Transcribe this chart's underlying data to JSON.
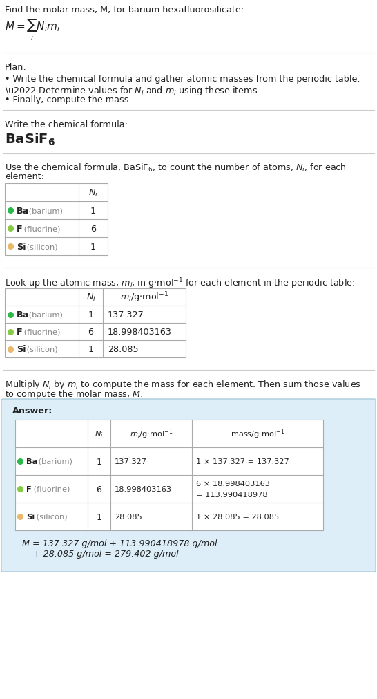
{
  "bg_color": "#ffffff",
  "title_text": "Find the molar mass, M, for barium hexafluorosilicate:",
  "sep_color": "#cccccc",
  "sep_lw": 0.8,
  "plan_header": "Plan:",
  "plan_bullets": [
    "• Write the chemical formula and gather atomic masses from the periodic table.",
    "• Determine values for Nᵢ and mᵢ using these items.",
    "• Finally, compute the mass."
  ],
  "step1_label": "Write the chemical formula:",
  "step2_label_pre": "Use the chemical formula, BaSiF",
  "step2_label_post": ", to count the number of atoms, Nᵢ, for each\nelement:",
  "step3_label": "Look up the atomic mass, mᵢ, in g·mol⁻¹ for each element in the periodic table:",
  "step4_label": "Multiply Nᵢ by mᵢ to compute the mass for each element. Then sum those values\nto compute the molar mass, M:",
  "element_names": [
    "Ba",
    "F",
    "Si"
  ],
  "element_fullnames": [
    "barium",
    "fluorine",
    "silicon"
  ],
  "element_colors": [
    "#2db84b",
    "#85cc44",
    "#e8b86d"
  ],
  "ni_vals": [
    "1",
    "6",
    "1"
  ],
  "mi_vals": [
    "137.327",
    "18.998403163",
    "28.085"
  ],
  "mass_calcs": [
    "1 × 137.327 = 137.327",
    "6 × 18.998403163\n= 113.990418978",
    "1 × 28.085 = 28.085"
  ],
  "answer_bg": "#ddeef8",
  "answer_border": "#aaccdd",
  "answer_label": "Answer:",
  "final_eq_line1": "M = 137.327 g/mol + 113.990418978 g/mol",
  "final_eq_line2": "    + 28.085 g/mol = 279.402 g/mol",
  "table_border_color": "#aaaaaa",
  "table_lw": 0.8,
  "fs_title": 9.2,
  "fs_text": 9.2,
  "fs_small": 8.2,
  "fs_formula": 14,
  "fs_math": 11
}
